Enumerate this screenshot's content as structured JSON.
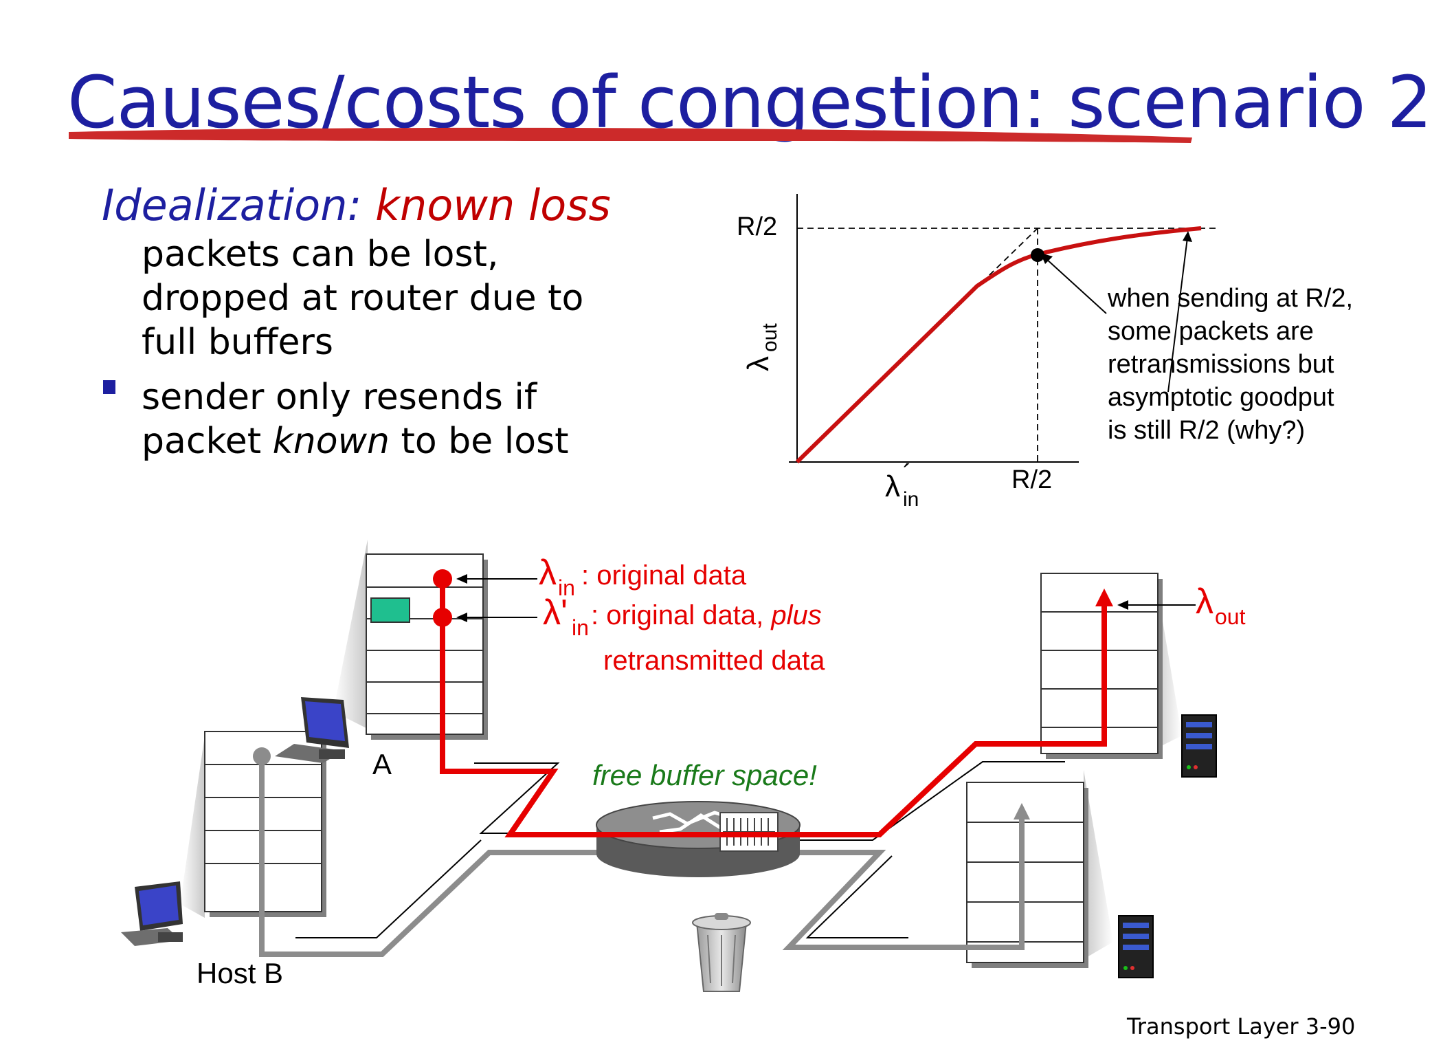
{
  "slide": {
    "title": "Causes/costs of congestion: scenario 2",
    "heading_blue": "Idealization: ",
    "heading_red": "known loss",
    "para_lines": [
      "packets can be lost,",
      "dropped at router due  to",
      "full buffers"
    ],
    "bullet_line1": "sender only resends if",
    "bullet_line2_a": "packet ",
    "bullet_line2_b": "known",
    "bullet_line2_c": " to be lost",
    "footer_label": "Transport Layer",
    "footer_page": "3-90"
  },
  "graph": {
    "y_tick": "R/2",
    "x_tick": "R/2",
    "y_label_sym": "λ",
    "y_label_sub": "out",
    "x_label_sym": "λ",
    "x_label_sub": "in",
    "x_label_mark": "´",
    "note_lines": [
      "when sending at R/2,",
      "some packets are",
      "retransmissions but",
      "asymptotic goodput",
      "is still R/2 (why?)"
    ]
  },
  "network": {
    "lambda_sym": "λ",
    "lambda_in_sub": "in",
    "label_orig": ": original data",
    "lambda_prime": "λ'",
    "label_plus_a": ": original data, ",
    "label_plus_b": "plus",
    "label_retrans": "retransmitted data",
    "lambda_out_sub": "out",
    "free_buffer": "free buffer space!",
    "host_a": "A",
    "host_b": "Host B"
  },
  "colors": {
    "title_blue": "#1d1fa0",
    "accent_red": "#e60000",
    "dark_red": "#c00000",
    "green_text": "#1a7a1a",
    "gray_path": "#8c8c8c"
  }
}
